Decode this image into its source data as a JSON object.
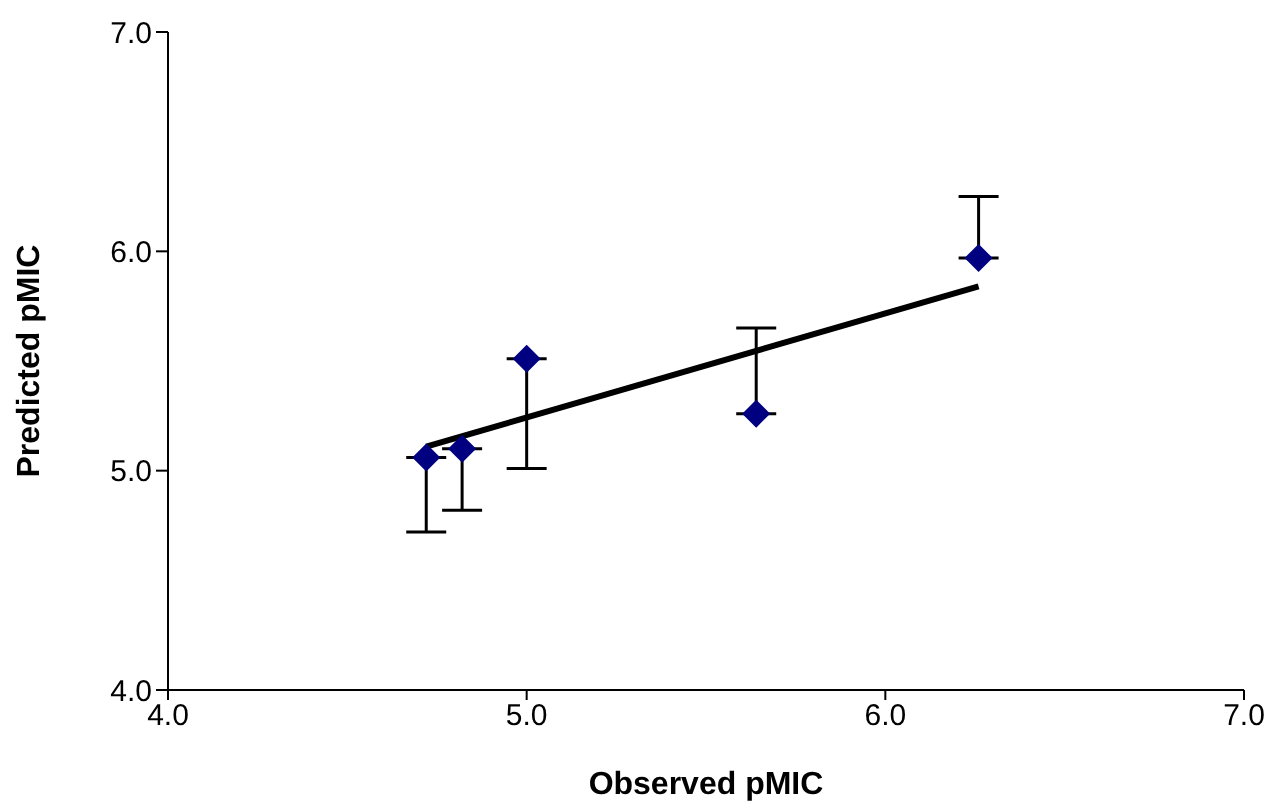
{
  "chart_data": {
    "type": "scatter",
    "xlabel": "Observed pMIC",
    "ylabel": "Predicted  pMIC",
    "xlim": [
      4,
      7
    ],
    "xticks": [
      {
        "value": 4,
        "label": "4.0"
      },
      {
        "value": 5,
        "label": "5.0"
      },
      {
        "value": 6,
        "label": "6.0"
      },
      {
        "value": 7,
        "label": "7.0"
      }
    ],
    "ylim": [
      4,
      7
    ],
    "yticks": [
      {
        "value": 4,
        "label": "4.0"
      },
      {
        "value": 5,
        "label": "5.0"
      },
      {
        "value": 6,
        "label": "6.0"
      },
      {
        "value": 7,
        "label": "7.0"
      }
    ],
    "series": [
      {
        "marker": "diamond",
        "color": "#000080",
        "x": [
          4.72,
          4.82,
          5.0,
          5.64,
          6.26
        ],
        "values": [
          5.06,
          5.1,
          5.51,
          5.26,
          5.97
        ],
        "errors": [
          [
            4.72,
            5.06
          ],
          [
            4.82,
            5.1
          ],
          [
            5.01,
            5.51
          ],
          [
            5.26,
            5.65
          ],
          [
            5.97,
            6.25
          ]
        ]
      },
      {
        "type": "line",
        "marker": "none",
        "color": "#000000",
        "x": [
          4.72,
          6.26
        ],
        "values": [
          5.11,
          5.84
        ]
      }
    ]
  }
}
